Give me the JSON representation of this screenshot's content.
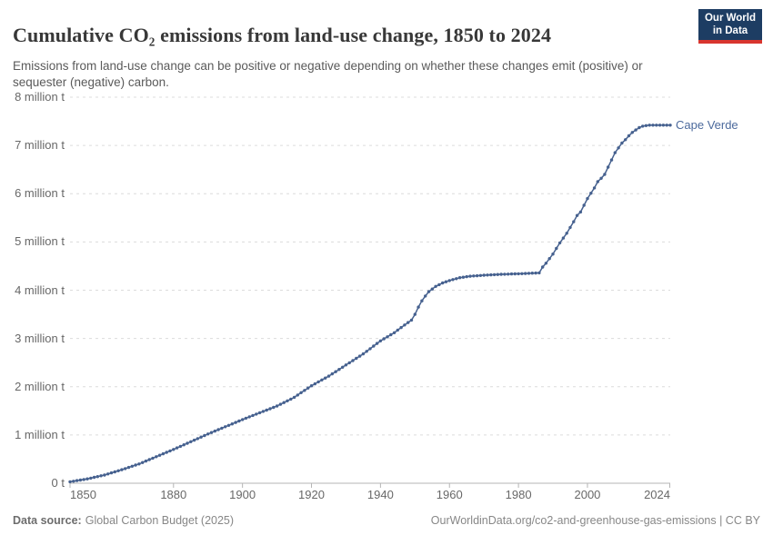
{
  "header": {
    "title": "Cumulative CO₂ emissions from land-use change, 1850 to 2024",
    "subtitle": "Emissions from land-use change can be positive or negative depending on whether these changes emit (positive) or sequester (negative) carbon.",
    "logo": {
      "line1": "Our World",
      "line2": "in Data",
      "bg_color": "#1d3d63",
      "bar_color": "#d8352e"
    }
  },
  "footer": {
    "source_label": "Data source:",
    "source_value": "Global Carbon Budget (2025)",
    "right_text": "OurWorldinData.org/co2-and-greenhouse-gas-emissions | CC BY"
  },
  "chart_data": {
    "type": "line",
    "title": "Cumulative CO₂ emissions from land-use change, 1850 to 2024",
    "unit": "t (tonnes of CO₂)",
    "xlim": [
      1850,
      2024
    ],
    "ylim": [
      0,
      8000000
    ],
    "grid": true,
    "legend_position": "end-of-line-label",
    "x_ticks": [
      {
        "v": 1850,
        "label": "1850"
      },
      {
        "v": 1880,
        "label": "1880"
      },
      {
        "v": 1900,
        "label": "1900"
      },
      {
        "v": 1920,
        "label": "1920"
      },
      {
        "v": 1940,
        "label": "1940"
      },
      {
        "v": 1960,
        "label": "1960"
      },
      {
        "v": 1980,
        "label": "1980"
      },
      {
        "v": 2000,
        "label": "2000"
      },
      {
        "v": 2024,
        "label": "2024"
      }
    ],
    "y_ticks": [
      {
        "v": 0,
        "label": "0 t"
      },
      {
        "v": 1,
        "label": "1 million t"
      },
      {
        "v": 2,
        "label": "2 million t"
      },
      {
        "v": 3,
        "label": "3 million t"
      },
      {
        "v": 4,
        "label": "4 million t"
      },
      {
        "v": 5,
        "label": "5 million t"
      },
      {
        "v": 6,
        "label": "6 million t"
      },
      {
        "v": 7,
        "label": "7 million t"
      },
      {
        "v": 8,
        "label": "8 million t"
      }
    ],
    "series": [
      {
        "name": "Cape Verde",
        "line_color": "#46618F",
        "label_color": "#4C6A9C",
        "points_unit": "million t",
        "points": [
          [
            1850,
            0.03
          ],
          [
            1855,
            0.09
          ],
          [
            1860,
            0.17
          ],
          [
            1865,
            0.28
          ],
          [
            1870,
            0.4
          ],
          [
            1875,
            0.55
          ],
          [
            1880,
            0.7
          ],
          [
            1885,
            0.86
          ],
          [
            1890,
            1.02
          ],
          [
            1895,
            1.17
          ],
          [
            1900,
            1.32
          ],
          [
            1905,
            1.46
          ],
          [
            1910,
            1.6
          ],
          [
            1915,
            1.78
          ],
          [
            1920,
            2.02
          ],
          [
            1925,
            2.22
          ],
          [
            1930,
            2.45
          ],
          [
            1935,
            2.68
          ],
          [
            1940,
            2.95
          ],
          [
            1944,
            3.12
          ],
          [
            1947,
            3.28
          ],
          [
            1949,
            3.38
          ],
          [
            1950,
            3.5
          ],
          [
            1951,
            3.65
          ],
          [
            1952,
            3.78
          ],
          [
            1953,
            3.88
          ],
          [
            1954,
            3.97
          ],
          [
            1956,
            4.08
          ],
          [
            1958,
            4.15
          ],
          [
            1960,
            4.2
          ],
          [
            1963,
            4.26
          ],
          [
            1966,
            4.29
          ],
          [
            1970,
            4.31
          ],
          [
            1975,
            4.33
          ],
          [
            1980,
            4.34
          ],
          [
            1986,
            4.36
          ],
          [
            1987,
            4.48
          ],
          [
            1988,
            4.56
          ],
          [
            1990,
            4.75
          ],
          [
            1992,
            4.98
          ],
          [
            1994,
            5.18
          ],
          [
            1996,
            5.42
          ],
          [
            1997,
            5.55
          ],
          [
            1998,
            5.62
          ],
          [
            2000,
            5.9
          ],
          [
            2002,
            6.12
          ],
          [
            2003,
            6.25
          ],
          [
            2004,
            6.32
          ],
          [
            2005,
            6.4
          ],
          [
            2006,
            6.55
          ],
          [
            2007,
            6.7
          ],
          [
            2008,
            6.85
          ],
          [
            2009,
            6.95
          ],
          [
            2010,
            7.05
          ],
          [
            2011,
            7.12
          ],
          [
            2012,
            7.2
          ],
          [
            2013,
            7.27
          ],
          [
            2014,
            7.32
          ],
          [
            2015,
            7.37
          ],
          [
            2016,
            7.4
          ],
          [
            2017,
            7.41
          ],
          [
            2018,
            7.42
          ],
          [
            2020,
            7.42
          ],
          [
            2022,
            7.42
          ],
          [
            2024,
            7.42
          ]
        ]
      }
    ]
  }
}
